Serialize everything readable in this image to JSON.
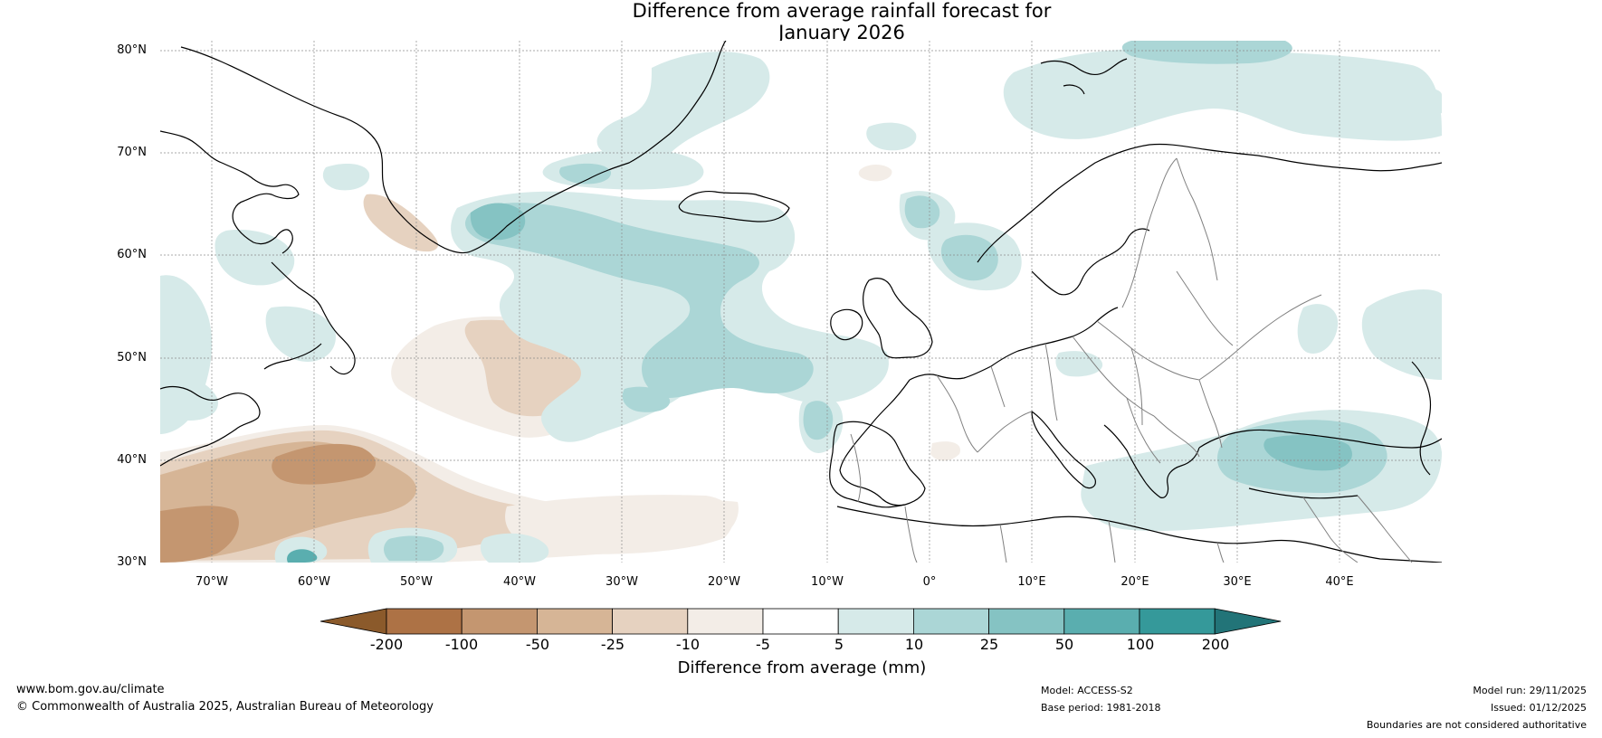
{
  "title": {
    "line1": "Difference from average rainfall forecast for",
    "line2": "January 2026"
  },
  "map": {
    "latitude_labels": [
      "80°N",
      "70°N",
      "60°N",
      "50°N",
      "40°N",
      "30°N"
    ],
    "longitude_labels": [
      "70°W",
      "60°W",
      "50°W",
      "40°W",
      "30°W",
      "20°W",
      "10°W",
      "0°",
      "10°E",
      "20°E",
      "30°E",
      "40°E"
    ],
    "lat_range": [
      30,
      81
    ],
    "lon_range": [
      -75,
      50
    ],
    "ocean_color": "#ffffff",
    "coastline_color": "#000000",
    "border_color": "#808080",
    "gridline_color": "#8c8c8c"
  },
  "colorbar": {
    "tick_labels": [
      "-200",
      "-100",
      "-50",
      "-25",
      "-10",
      "-5",
      "5",
      "10",
      "25",
      "50",
      "100",
      "200"
    ],
    "colors": [
      "#8b5a2b",
      "#ad7245",
      "#c49670",
      "#d6b596",
      "#e6d2c0",
      "#f3ede7",
      "#ffffff",
      "#d6eae9",
      "#abd6d6",
      "#85c3c3",
      "#5aaeaf",
      "#35999a",
      "#227478"
    ],
    "label": "Difference from average (mm)"
  },
  "footer": {
    "website": "www.bom.gov.au/climate",
    "copyright": "© Commonwealth of Australia 2025, Australian Bureau of Meteorology",
    "model": "Model: ACCESS-S2",
    "base_period": "Base period: 1981-2018",
    "model_run": "Model run: 29/11/2025",
    "issued": "Issued: 01/12/2025",
    "disclaimer": "Boundaries are not considered authoritative"
  }
}
